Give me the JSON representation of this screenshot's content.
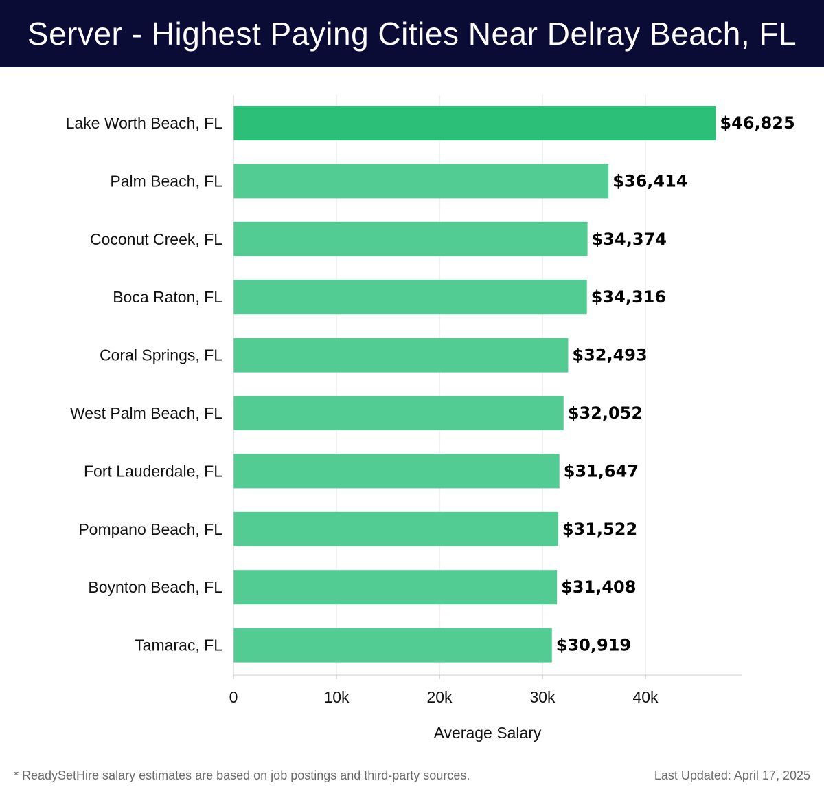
{
  "header": {
    "title": "Server - Highest Paying Cities Near Delray Beach, FL"
  },
  "footer": {
    "note": "* ReadySetHire salary estimates are based on job postings and third-party sources.",
    "updated": "Last Updated: April 17, 2025"
  },
  "colors": {
    "header_bg": "#0b0c35",
    "top_bar": "#2cbf78",
    "bar": "#52cc92",
    "grid": "#e3e3e3"
  },
  "chart_data": {
    "type": "bar",
    "orientation": "horizontal",
    "xlabel": "Average Salary",
    "ylabel": "",
    "xlim": [
      0,
      49000
    ],
    "xticks": [
      0,
      10000,
      20000,
      30000,
      40000
    ],
    "xtick_labels": [
      "0",
      "10k",
      "20k",
      "30k",
      "40k"
    ],
    "grid": "vertical",
    "categories": [
      "Lake Worth Beach, FL",
      "Palm Beach, FL",
      "Coconut Creek, FL",
      "Boca Raton, FL",
      "Coral Springs, FL",
      "West Palm Beach, FL",
      "Fort Lauderdale, FL",
      "Pompano Beach, FL",
      "Boynton Beach, FL",
      "Tamarac, FL"
    ],
    "values": [
      46825,
      36414,
      34374,
      34316,
      32493,
      32052,
      31647,
      31522,
      31408,
      30919
    ],
    "value_labels": [
      "$46,825",
      "$36,414",
      "$34,374",
      "$34,316",
      "$32,493",
      "$32,052",
      "$31,647",
      "$31,522",
      "$31,408",
      "$30,919"
    ]
  }
}
